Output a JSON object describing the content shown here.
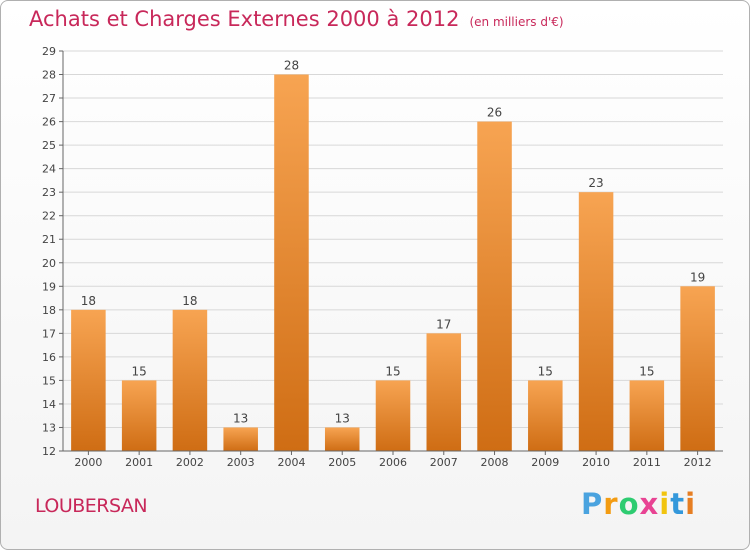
{
  "header": {
    "title": "Achats et Charges Externes 2000 à 2012",
    "subtitle": "(en milliers d'€)"
  },
  "footer": {
    "commune": "LOUBERSAN",
    "brand_letters": [
      "P",
      "r",
      "o",
      "x",
      "i",
      "t",
      "i"
    ],
    "brand_colors": [
      "#4aa3df",
      "#f39c12",
      "#2ecc71",
      "#e84393",
      "#f1c40f",
      "#3498db",
      "#e67e22"
    ]
  },
  "chart_data": {
    "type": "bar",
    "categories": [
      "2000",
      "2001",
      "2002",
      "2003",
      "2004",
      "2005",
      "2006",
      "2007",
      "2008",
      "2009",
      "2010",
      "2011",
      "2012"
    ],
    "values": [
      18,
      15,
      18,
      13,
      28,
      13,
      15,
      17,
      26,
      15,
      23,
      15,
      19
    ],
    "ylim": [
      12,
      29
    ],
    "yticks": [
      12,
      13,
      14,
      15,
      16,
      17,
      18,
      19,
      20,
      21,
      22,
      23,
      24,
      25,
      26,
      27,
      28,
      29
    ],
    "grid": true,
    "colors": {
      "bar_top": "#f7a452",
      "bar_bottom": "#cf6d14",
      "grid": "#d8d8d8",
      "axis": "#666666"
    }
  }
}
